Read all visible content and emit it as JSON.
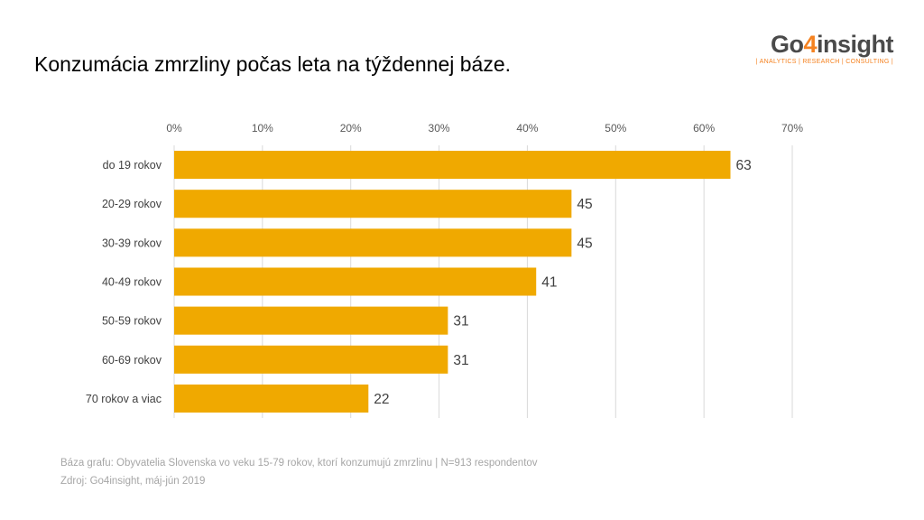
{
  "title": "Konzumácia zmrzliny počas leta na týždennej báze.",
  "logo": {
    "name_prefix": "Go",
    "name_digit": "4",
    "name_suffix": "insight",
    "tagline": "| ANALYTICS | RESEARCH | CONSULTING |",
    "colors": {
      "text": "#4a4a4a",
      "accent": "#f58220"
    }
  },
  "chart_data": {
    "type": "bar",
    "orientation": "horizontal",
    "categories": [
      "do 19 rokov",
      "20-29 rokov",
      "30-39 rokov",
      "40-49 rokov",
      "50-59 rokov",
      "60-69 rokov",
      "70 rokov a viac"
    ],
    "values": [
      63,
      45,
      45,
      41,
      31,
      31,
      22
    ],
    "data_labels": [
      "63",
      "45",
      "45",
      "41",
      "31",
      "31",
      "22"
    ],
    "xaxis": {
      "position": "top",
      "ticks": [
        0,
        10,
        20,
        30,
        40,
        50,
        60,
        70
      ],
      "tick_labels": [
        "0%",
        "10%",
        "20%",
        "30%",
        "40%",
        "50%",
        "60%",
        "70%"
      ],
      "range": [
        0,
        70
      ]
    },
    "grid": "vertical",
    "legend": "none",
    "bar_color": "#f0a900",
    "grid_color": "#d9d9d9"
  },
  "footnotes": {
    "base": "Báza grafu: Obyvatelia Slovenska vo veku 15-79 rokov, ktorí konzumujú zmrzlinu | N=913 respondentov",
    "source": "Zdroj: Go4insight, máj-jún 2019"
  }
}
